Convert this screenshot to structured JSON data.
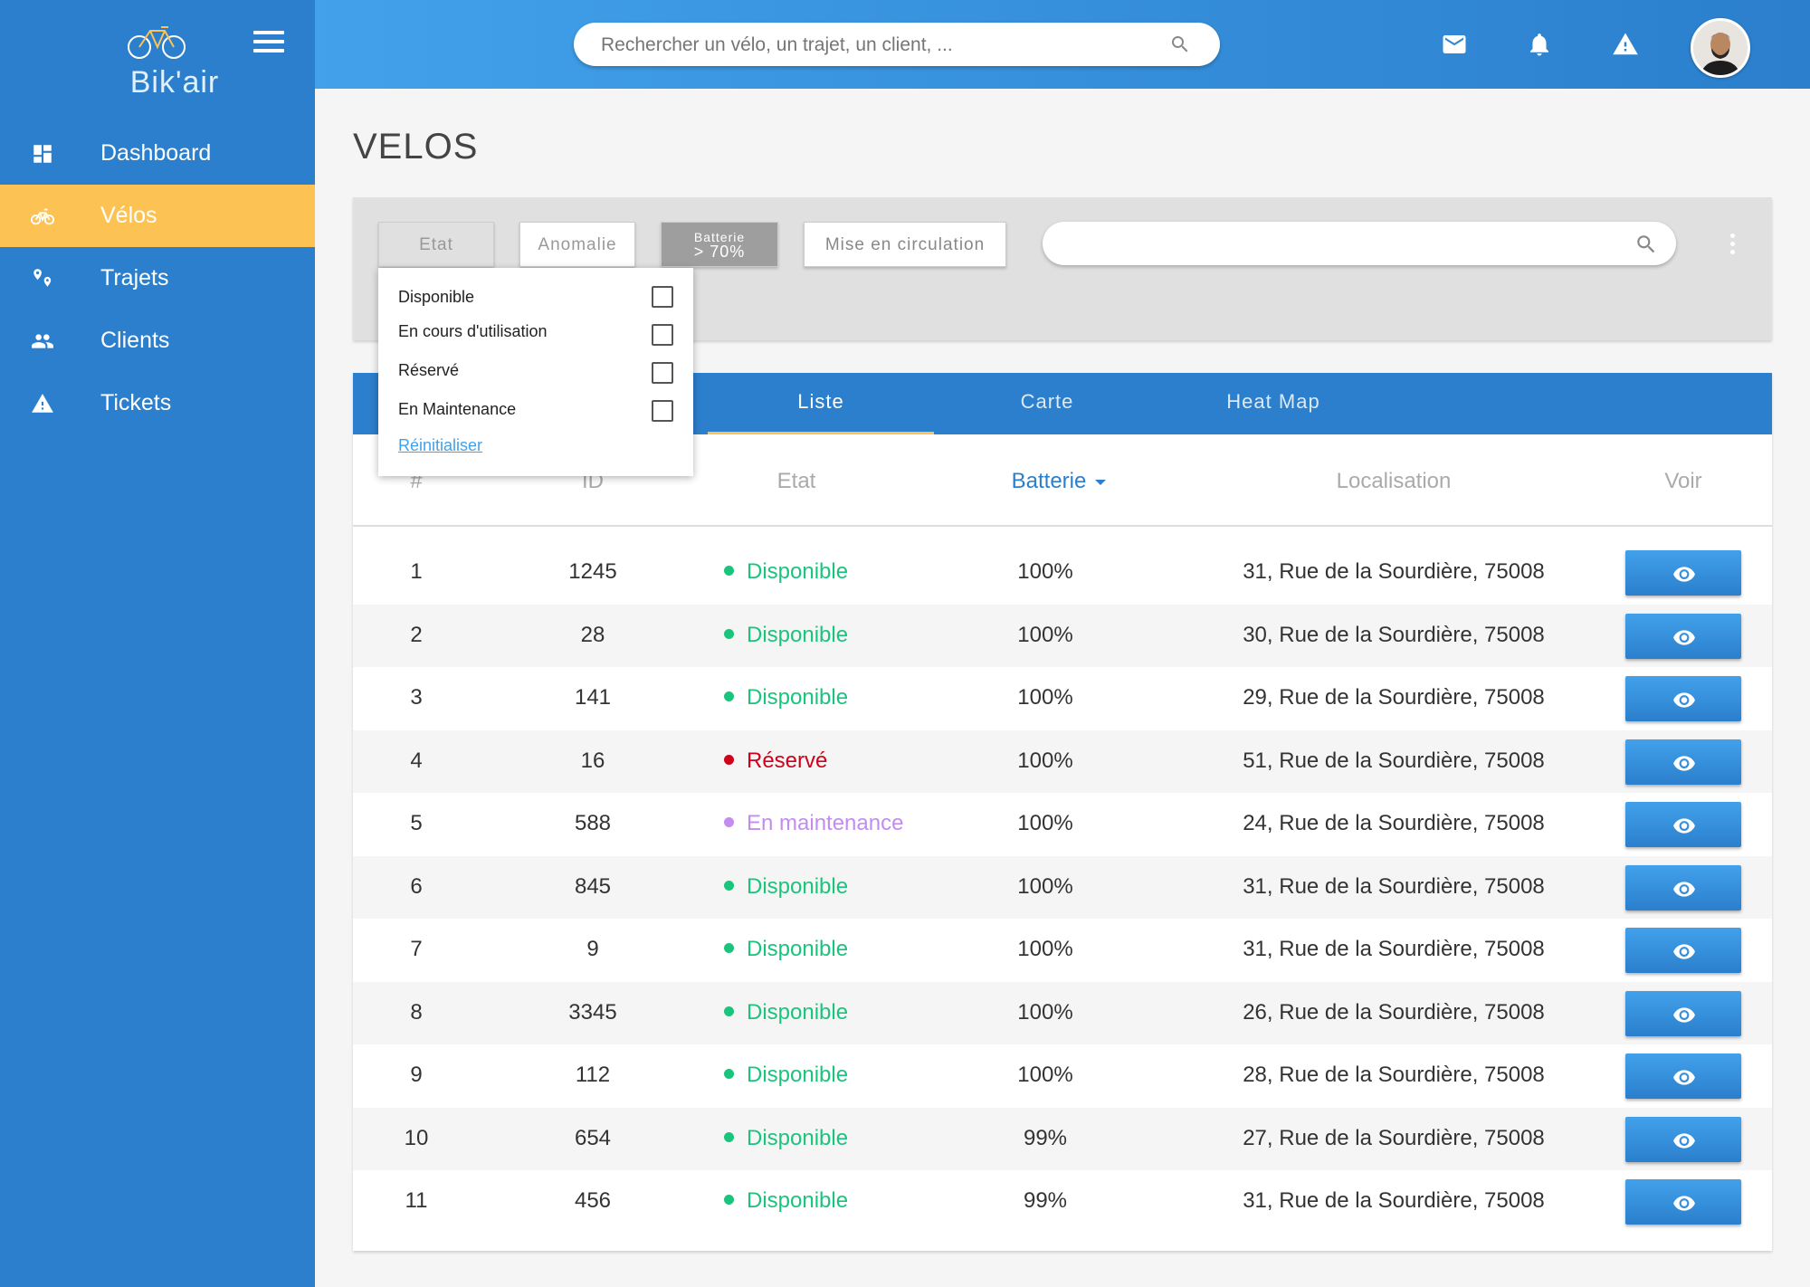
{
  "app": {
    "logo_text": "Bik'air"
  },
  "sidebar": {
    "items": [
      {
        "label": "Dashboard",
        "icon": "dashboard-icon",
        "active": false
      },
      {
        "label": "Vélos",
        "icon": "bike-icon",
        "active": true
      },
      {
        "label": "Trajets",
        "icon": "map-pins-icon",
        "active": false
      },
      {
        "label": "Clients",
        "icon": "people-icon",
        "active": false
      },
      {
        "label": "Tickets",
        "icon": "warning-icon",
        "active": false
      }
    ]
  },
  "topbar": {
    "search_placeholder": "Rechercher un vélo, un trajet, un client, ...",
    "icons": [
      "mail-icon",
      "bell-icon",
      "alert-icon",
      "avatar"
    ]
  },
  "page": {
    "title": "VELOS"
  },
  "filters": {
    "etat_label": "Etat",
    "anomalie_label": "Anomalie",
    "batterie_label": "Batterie",
    "batterie_value": "> 70%",
    "mise_label": "Mise en circulation",
    "search_placeholder": ""
  },
  "etat_dropdown": {
    "options": [
      {
        "label": "Disponible",
        "checked": false
      },
      {
        "label": "En cours d'utilisation",
        "checked": false
      },
      {
        "label": "Réservé",
        "checked": false
      },
      {
        "label": "En Maintenance",
        "checked": false
      }
    ],
    "reset_label": "Réinitialiser"
  },
  "tabs": [
    {
      "label": "Liste",
      "active": true
    },
    {
      "label": "Carte",
      "active": false
    },
    {
      "label": "Heat Map",
      "active": false
    }
  ],
  "table": {
    "headers": {
      "num": "#",
      "id": "ID",
      "etat": "Etat",
      "batterie": "Batterie",
      "localisation": "Localisation",
      "voir": "Voir"
    },
    "sorted_by": "Batterie",
    "rows": [
      {
        "num": "1",
        "id": "1245",
        "etat": "Disponible",
        "status": "disponible",
        "batterie": "100%",
        "localisation": "31, Rue de la Sourdière, 75008"
      },
      {
        "num": "2",
        "id": "28",
        "etat": "Disponible",
        "status": "disponible",
        "batterie": "100%",
        "localisation": "30, Rue de la Sourdière, 75008"
      },
      {
        "num": "3",
        "id": "141",
        "etat": "Disponible",
        "status": "disponible",
        "batterie": "100%",
        "localisation": "29, Rue de la Sourdière, 75008"
      },
      {
        "num": "4",
        "id": "16",
        "etat": "Réservé",
        "status": "reserve",
        "batterie": "100%",
        "localisation": "51, Rue de la Sourdière, 75008"
      },
      {
        "num": "5",
        "id": "588",
        "etat": "En maintenance",
        "status": "maintenance",
        "batterie": "100%",
        "localisation": "24, Rue de la Sourdière, 75008"
      },
      {
        "num": "6",
        "id": "845",
        "etat": "Disponible",
        "status": "disponible",
        "batterie": "100%",
        "localisation": "31, Rue de la Sourdière, 75008"
      },
      {
        "num": "7",
        "id": "9",
        "etat": "Disponible",
        "status": "disponible",
        "batterie": "100%",
        "localisation": "31, Rue de la Sourdière, 75008"
      },
      {
        "num": "8",
        "id": "3345",
        "etat": "Disponible",
        "status": "disponible",
        "batterie": "100%",
        "localisation": "26, Rue de la Sourdière, 75008"
      },
      {
        "num": "9",
        "id": "112",
        "etat": "Disponible",
        "status": "disponible",
        "batterie": "100%",
        "localisation": "28, Rue de la Sourdière, 75008"
      },
      {
        "num": "10",
        "id": "654",
        "etat": "Disponible",
        "status": "disponible",
        "batterie": "99%",
        "localisation": "27, Rue de la Sourdière, 75008"
      },
      {
        "num": "11",
        "id": "456",
        "etat": "Disponible",
        "status": "disponible",
        "batterie": "99%",
        "localisation": "31, Rue de la Sourdière, 75008"
      }
    ]
  },
  "colors": {
    "primary": "#2b7fcd",
    "accent": "#fcc354",
    "disponible": "#1bc47d",
    "reserve": "#d0021b",
    "maintenance": "#c38cf0"
  }
}
